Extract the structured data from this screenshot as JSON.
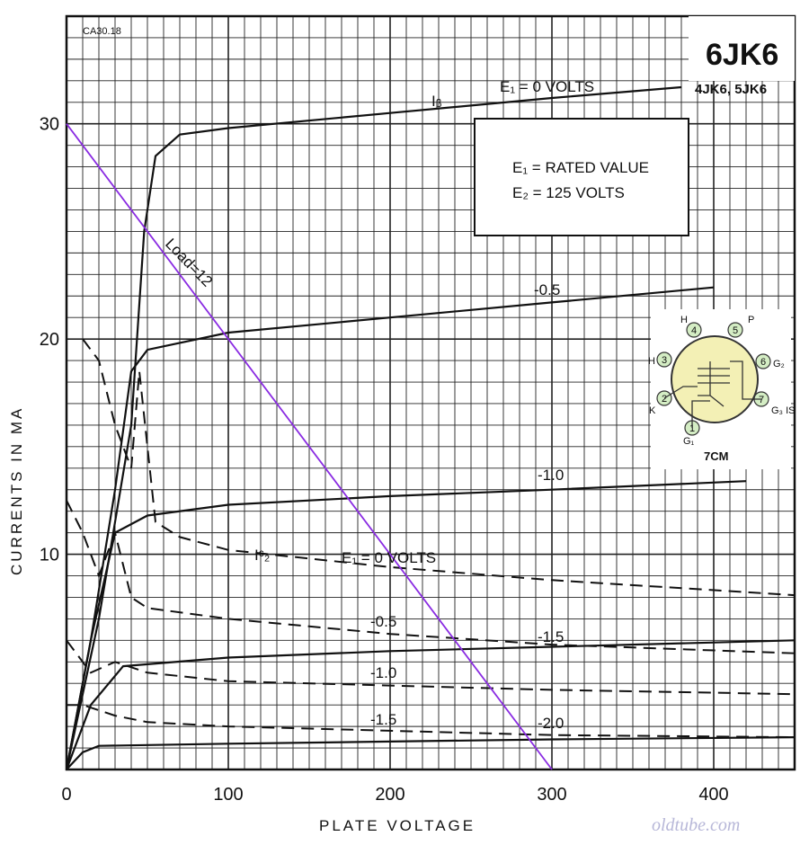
{
  "chart_data": {
    "type": "line",
    "tube": "6JK6",
    "alt_types": "4JK6, 5JK6",
    "code": "CA30.18",
    "xlabel": "PLATE VOLTAGE",
    "ylabel": "CURRENTS IN MA",
    "xlim": [
      0,
      450
    ],
    "ylim": [
      0,
      35
    ],
    "x_ticks": [
      0,
      100,
      200,
      300,
      400
    ],
    "y_ticks": [
      10,
      20,
      30
    ],
    "grid": true,
    "conditions": [
      "E₁ = RATED VALUE",
      "E₂ = 125 VOLTS"
    ],
    "plate_series": [
      {
        "label": "E₁ = 0 VOLTS",
        "points": [
          [
            0,
            0
          ],
          [
            20,
            7
          ],
          [
            40,
            16
          ],
          [
            48,
            25
          ],
          [
            55,
            28.5
          ],
          [
            70,
            29.5
          ],
          [
            100,
            29.8
          ],
          [
            200,
            30.5
          ],
          [
            300,
            31.2
          ],
          [
            380,
            31.7
          ]
        ]
      },
      {
        "label": "-0.5",
        "points": [
          [
            0,
            0
          ],
          [
            15,
            6
          ],
          [
            30,
            13
          ],
          [
            40,
            18.5
          ],
          [
            50,
            19.5
          ],
          [
            100,
            20.3
          ],
          [
            200,
            21
          ],
          [
            300,
            21.7
          ],
          [
            400,
            22.4
          ]
        ]
      },
      {
        "label": "-1.0",
        "points": [
          [
            0,
            0
          ],
          [
            15,
            6
          ],
          [
            30,
            11
          ],
          [
            50,
            11.8
          ],
          [
            100,
            12.3
          ],
          [
            200,
            12.7
          ],
          [
            300,
            13
          ],
          [
            420,
            13.4
          ]
        ]
      },
      {
        "label": "-1.5",
        "points": [
          [
            0,
            0
          ],
          [
            15,
            3
          ],
          [
            35,
            4.8
          ],
          [
            100,
            5.2
          ],
          [
            200,
            5.5
          ],
          [
            300,
            5.7
          ],
          [
            450,
            6
          ]
        ]
      },
      {
        "label": "-2.0",
        "points": [
          [
            0,
            0
          ],
          [
            10,
            0.8
          ],
          [
            20,
            1.1
          ],
          [
            100,
            1.2
          ],
          [
            200,
            1.3
          ],
          [
            300,
            1.4
          ],
          [
            450,
            1.5
          ]
        ]
      }
    ],
    "screen_series": [
      {
        "label": "E₁ = 0 VOLTS",
        "points": [
          [
            10,
            20
          ],
          [
            20,
            19
          ],
          [
            30,
            16
          ],
          [
            40,
            14
          ],
          [
            45,
            18.5
          ],
          [
            50,
            15
          ],
          [
            55,
            11.5
          ],
          [
            70,
            10.8
          ],
          [
            100,
            10.2
          ],
          [
            200,
            9.4
          ],
          [
            300,
            8.8
          ],
          [
            450,
            8.1
          ]
        ]
      },
      {
        "label": "-0.5",
        "points": [
          [
            0,
            12.5
          ],
          [
            10,
            11
          ],
          [
            20,
            9
          ],
          [
            30,
            11
          ],
          [
            40,
            8
          ],
          [
            50,
            7.5
          ],
          [
            100,
            7
          ],
          [
            200,
            6.3
          ],
          [
            300,
            5.8
          ],
          [
            450,
            5.4
          ]
        ]
      },
      {
        "label": "-1.0",
        "points": [
          [
            0,
            6
          ],
          [
            15,
            4.5
          ],
          [
            30,
            5
          ],
          [
            50,
            4.5
          ],
          [
            100,
            4.1
          ],
          [
            200,
            3.9
          ],
          [
            300,
            3.7
          ],
          [
            450,
            3.5
          ]
        ]
      },
      {
        "label": "-1.5",
        "points": [
          [
            0,
            3
          ],
          [
            10,
            3
          ],
          [
            30,
            2.5
          ],
          [
            50,
            2.2
          ],
          [
            100,
            2
          ],
          [
            200,
            1.8
          ],
          [
            300,
            1.6
          ],
          [
            450,
            1.5
          ]
        ]
      }
    ],
    "load_line": {
      "label": "Load=12",
      "points": [
        [
          0,
          30
        ],
        [
          300,
          0
        ]
      ],
      "color": "#8a2be2"
    },
    "curve_labels": {
      "ib": "Iᵦ",
      "ic2": "Iᶜ₂"
    },
    "basing": {
      "code": "7CM",
      "pins": [
        "1",
        "2",
        "3",
        "4",
        "5",
        "6",
        "7"
      ],
      "pin_names": [
        "G₁",
        "K",
        "H",
        "H",
        "P",
        "G₂",
        "G₃ IS"
      ],
      "pin_color": "#d4edc4",
      "envelope_color": "#f3f0b5"
    },
    "watermark": "oldtube.com"
  }
}
